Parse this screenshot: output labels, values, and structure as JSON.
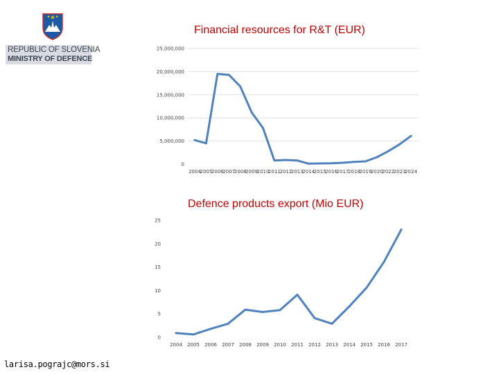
{
  "header": {
    "crest_icon": "slovenia-coat-of-arms-icon",
    "line1": "REPUBLIC OF SLOVENIA",
    "line2": "MINISTRY OF DEFENCE"
  },
  "footer": {
    "email": "larisa.pograjc@mors.si"
  },
  "colors": {
    "line": "#4f81bd",
    "title": "#c00000",
    "grid": "#d9d9d9"
  },
  "chart_data": [
    {
      "type": "line",
      "title": "Financial resources  for R&T (EUR)",
      "xlabel": "",
      "ylabel": "",
      "categories": [
        "2004",
        "2005",
        "2006",
        "2007",
        "2008",
        "2009",
        "2010",
        "2011",
        "2012",
        "2013",
        "2014",
        "2015",
        "2016",
        "2017",
        "2018",
        "2019",
        "2020",
        "2022",
        "2023",
        "2024"
      ],
      "values": [
        5200000,
        4500000,
        19500000,
        19300000,
        16800000,
        11200000,
        7800000,
        800000,
        900000,
        800000,
        100000,
        150000,
        200000,
        300000,
        500000,
        600000,
        1500000,
        2800000,
        4300000,
        6100000
      ],
      "y_ticks": [
        "0",
        "5,000,000",
        "10,000,000",
        "15,000,000",
        "20,000,000",
        "25,000,000"
      ],
      "ylim": [
        0,
        25000000
      ],
      "grid": true
    },
    {
      "type": "line",
      "title": "Defence products export (Mio EUR)",
      "xlabel": "",
      "ylabel": "",
      "categories": [
        "2004",
        "2005",
        "2006",
        "2007",
        "2008",
        "2009",
        "2010",
        "2011",
        "2012",
        "2013",
        "2014",
        "2015",
        "2016",
        "2017"
      ],
      "values": [
        0.9,
        0.6,
        1.8,
        2.9,
        5.9,
        5.4,
        5.8,
        9.1,
        4.1,
        2.9,
        6.6,
        10.6,
        16.1,
        23.0
      ],
      "y_ticks": [
        "0",
        "5",
        "10",
        "15",
        "20",
        "25"
      ],
      "ylim": [
        0,
        25
      ],
      "grid": false
    }
  ]
}
